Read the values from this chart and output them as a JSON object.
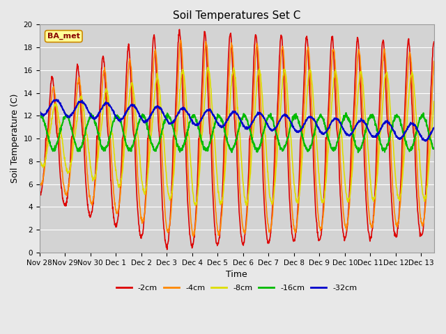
{
  "title": "Soil Temperatures Set C",
  "xlabel": "Time",
  "ylabel": "Soil Temperature (C)",
  "ylim": [
    0,
    20
  ],
  "x_tick_labels": [
    "Nov 28",
    "Nov 29",
    "Nov 30",
    "Dec 1",
    "Dec 2",
    "Dec 3",
    "Dec 4",
    "Dec 5",
    "Dec 6",
    "Dec 7",
    "Dec 8",
    "Dec 9",
    "Dec 10",
    "Dec 11",
    "Dec 12",
    "Dec 13"
  ],
  "x_tick_positions": [
    0,
    1,
    2,
    3,
    4,
    5,
    6,
    7,
    8,
    9,
    10,
    11,
    12,
    13,
    14,
    15
  ],
  "series_colors": [
    "#dd0000",
    "#ff8800",
    "#dddd00",
    "#00bb00",
    "#0000cc"
  ],
  "series_labels": [
    "-2cm",
    "-4cm",
    "-8cm",
    "-16cm",
    "-32cm"
  ],
  "background_color": "#e8e8e8",
  "plot_bg_color": "#d3d3d3",
  "grid_color": "#ffffff",
  "annotation_text": "BA_met",
  "annotation_bg": "#ffff99",
  "annotation_border": "#cc8800",
  "title_fontsize": 11,
  "axis_label_fontsize": 9,
  "tick_fontsize": 7.5,
  "legend_fontsize": 8,
  "days": 15.5,
  "num_points": 1500
}
